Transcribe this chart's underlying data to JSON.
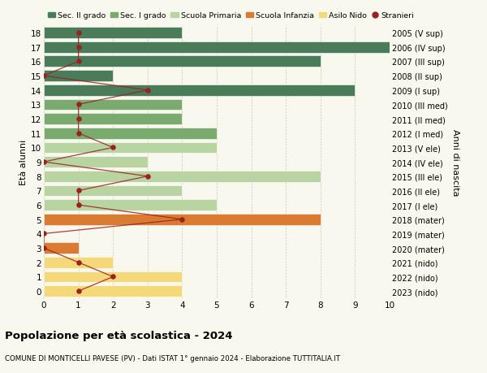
{
  "ages": [
    18,
    17,
    16,
    15,
    14,
    13,
    12,
    11,
    10,
    9,
    8,
    7,
    6,
    5,
    4,
    3,
    2,
    1,
    0
  ],
  "years": [
    "2005 (V sup)",
    "2006 (IV sup)",
    "2007 (III sup)",
    "2008 (II sup)",
    "2009 (I sup)",
    "2010 (III med)",
    "2011 (II med)",
    "2012 (I med)",
    "2013 (V ele)",
    "2014 (IV ele)",
    "2015 (III ele)",
    "2016 (II ele)",
    "2017 (I ele)",
    "2018 (mater)",
    "2019 (mater)",
    "2020 (mater)",
    "2021 (nido)",
    "2022 (nido)",
    "2023 (nido)"
  ],
  "bar_values": [
    4,
    10,
    8,
    2,
    9,
    4,
    4,
    5,
    5,
    3,
    8,
    4,
    5,
    8,
    0,
    1,
    2,
    4,
    4
  ],
  "bar_colors": [
    "#4a7c59",
    "#4a7c59",
    "#4a7c59",
    "#4a7c59",
    "#4a7c59",
    "#7aaa6e",
    "#7aaa6e",
    "#7aaa6e",
    "#b8d4a0",
    "#b8d4a0",
    "#b8d4a0",
    "#b8d4a0",
    "#b8d4a0",
    "#d97b30",
    "#d97b30",
    "#d97b30",
    "#f5d87a",
    "#f5d87a",
    "#f5d87a"
  ],
  "stranieri": [
    1,
    1,
    1,
    0,
    3,
    1,
    1,
    1,
    2,
    0,
    3,
    1,
    1,
    4,
    0,
    0,
    1,
    2,
    1
  ],
  "title": "Popolazione per età scolastica - 2024",
  "subtitle": "COMUNE DI MONTICELLI PAVESE (PV) - Dati ISTAT 1° gennaio 2024 - Elaborazione TUTTITALIA.IT",
  "ylabel_left": "Età alunni",
  "ylabel_right": "Anni di nascita",
  "xlim": [
    0,
    10
  ],
  "colors": {
    "sec2": "#4a7c59",
    "sec1": "#7aaa6e",
    "primaria": "#b8d4a0",
    "infanzia": "#d97b30",
    "nido": "#f5d87a",
    "stranieri": "#9b2020"
  },
  "legend_labels": [
    "Sec. II grado",
    "Sec. I grado",
    "Scuola Primaria",
    "Scuola Infanzia",
    "Asilo Nido",
    "Stranieri"
  ],
  "bg_color": "#f8f8ee"
}
